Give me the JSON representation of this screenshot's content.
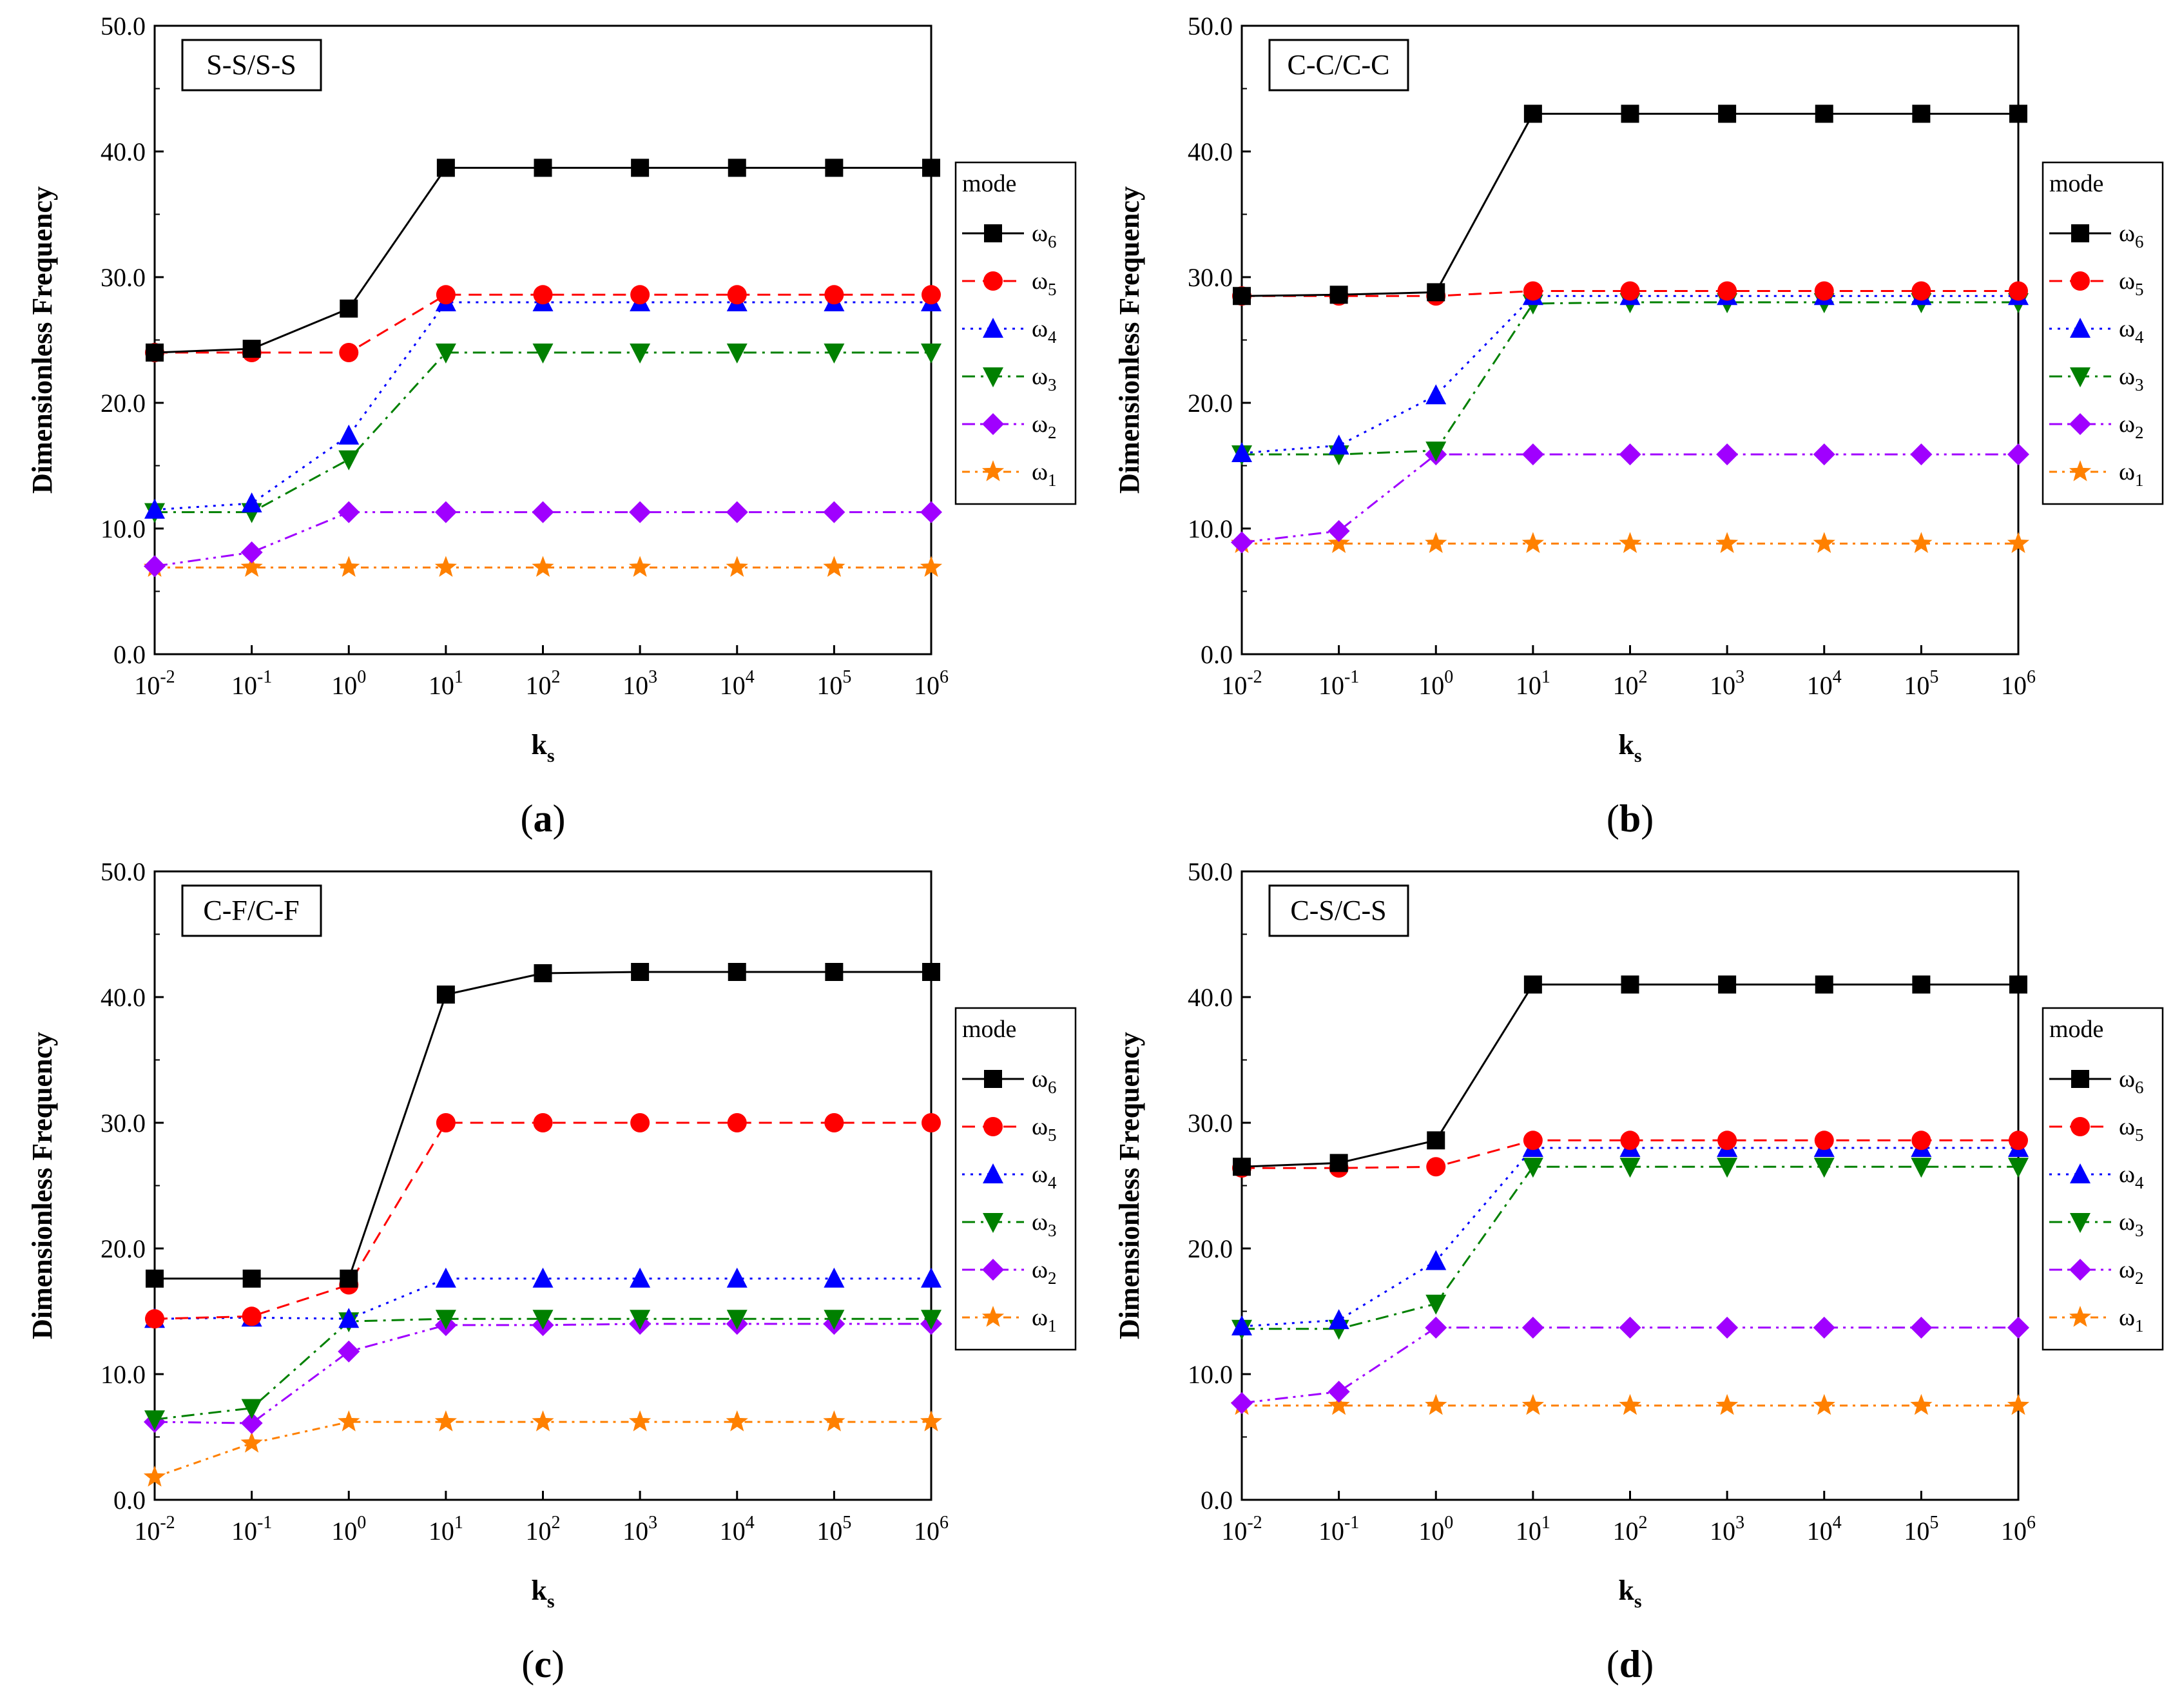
{
  "figure": {
    "ylabel": "Dimensionless Frequency",
    "xlabel_main": "k",
    "xlabel_sub": "s",
    "legend_title": "mode",
    "x_tick_base": "10",
    "x_tick_exponents": [
      "-2",
      "-1",
      "0",
      "1",
      "2",
      "3",
      "4",
      "5",
      "6"
    ],
    "y_tick_labels": [
      "0.0",
      "10.0",
      "20.0",
      "30.0",
      "40.0",
      "50.0"
    ]
  },
  "chart_data": [
    {
      "type": "line",
      "panel": "(a)",
      "panel_letter": "a",
      "condition": "S-S/S-S",
      "title": "",
      "xlabel": "ks",
      "ylabel": "Dimensionless Frequency",
      "x_scale": "log",
      "x": [
        0.01,
        0.1,
        1,
        10,
        100,
        1000,
        10000,
        100000,
        1000000
      ],
      "ylim": [
        0,
        50
      ],
      "series": [
        {
          "name": "ω6",
          "sub": "6",
          "color": "#000000",
          "marker": "square",
          "dash": "solid",
          "values": [
            24.0,
            24.3,
            27.5,
            38.7,
            38.7,
            38.7,
            38.7,
            38.7,
            38.7
          ]
        },
        {
          "name": "ω5",
          "sub": "5",
          "color": "#ff0000",
          "marker": "circle",
          "dash": "dash",
          "values": [
            24.0,
            24.0,
            24.0,
            28.6,
            28.6,
            28.6,
            28.6,
            28.6,
            28.6
          ]
        },
        {
          "name": "ω4",
          "sub": "4",
          "color": "#0000ff",
          "marker": "triangle-up",
          "dash": "dot",
          "values": [
            11.5,
            12.0,
            17.4,
            28.0,
            28.0,
            28.0,
            28.0,
            28.0,
            28.0
          ]
        },
        {
          "name": "ω3",
          "sub": "3",
          "color": "#008000",
          "marker": "triangle-down",
          "dash": "dashdot",
          "values": [
            11.3,
            11.3,
            15.5,
            24.0,
            24.0,
            24.0,
            24.0,
            24.0,
            24.0
          ]
        },
        {
          "name": "ω2",
          "sub": "2",
          "color": "#a000ff",
          "marker": "diamond",
          "dash": "dashdotdot",
          "values": [
            7.0,
            8.1,
            11.3,
            11.3,
            11.3,
            11.3,
            11.3,
            11.3,
            11.3
          ]
        },
        {
          "name": "ω1",
          "sub": "1",
          "color": "#ff8000",
          "marker": "star",
          "dash": "shortdashdot",
          "values": [
            6.9,
            6.9,
            6.9,
            6.9,
            6.9,
            6.9,
            6.9,
            6.9,
            6.9
          ]
        }
      ]
    },
    {
      "type": "line",
      "panel": "(b)",
      "panel_letter": "b",
      "condition": "C-C/C-C",
      "title": "",
      "xlabel": "ks",
      "ylabel": "Dimensionless Frequency",
      "x_scale": "log",
      "x": [
        0.01,
        0.1,
        1,
        10,
        100,
        1000,
        10000,
        100000,
        1000000
      ],
      "ylim": [
        0,
        50
      ],
      "series": [
        {
          "name": "ω6",
          "sub": "6",
          "color": "#000000",
          "marker": "square",
          "dash": "solid",
          "values": [
            28.5,
            28.6,
            28.8,
            43.0,
            43.0,
            43.0,
            43.0,
            43.0,
            43.0
          ]
        },
        {
          "name": "ω5",
          "sub": "5",
          "color": "#ff0000",
          "marker": "circle",
          "dash": "dash",
          "values": [
            28.5,
            28.5,
            28.5,
            28.9,
            28.9,
            28.9,
            28.9,
            28.9,
            28.9
          ]
        },
        {
          "name": "ω4",
          "sub": "4",
          "color": "#0000ff",
          "marker": "triangle-up",
          "dash": "dot",
          "values": [
            16.0,
            16.6,
            20.6,
            28.5,
            28.5,
            28.5,
            28.5,
            28.5,
            28.5
          ]
        },
        {
          "name": "ω3",
          "sub": "3",
          "color": "#008000",
          "marker": "triangle-down",
          "dash": "dashdot",
          "values": [
            15.9,
            15.9,
            16.2,
            27.9,
            28.0,
            28.0,
            28.0,
            28.0,
            28.0
          ]
        },
        {
          "name": "ω2",
          "sub": "2",
          "color": "#a000ff",
          "marker": "diamond",
          "dash": "dashdotdot",
          "values": [
            8.9,
            9.8,
            15.9,
            15.9,
            15.9,
            15.9,
            15.9,
            15.9,
            15.9
          ]
        },
        {
          "name": "ω1",
          "sub": "1",
          "color": "#ff8000",
          "marker": "star",
          "dash": "shortdashdot",
          "values": [
            8.8,
            8.8,
            8.8,
            8.8,
            8.8,
            8.8,
            8.8,
            8.8,
            8.8
          ]
        }
      ]
    },
    {
      "type": "line",
      "panel": "(c)",
      "panel_letter": "c",
      "condition": "C-F/C-F",
      "title": "",
      "xlabel": "ks",
      "ylabel": "Dimensionless Frequency",
      "x_scale": "log",
      "x": [
        0.01,
        0.1,
        1,
        10,
        100,
        1000,
        10000,
        100000,
        1000000
      ],
      "ylim": [
        0,
        50
      ],
      "series": [
        {
          "name": "ω6",
          "sub": "6",
          "color": "#000000",
          "marker": "square",
          "dash": "solid",
          "values": [
            17.6,
            17.6,
            17.6,
            40.2,
            41.9,
            42.0,
            42.0,
            42.0,
            42.0
          ]
        },
        {
          "name": "ω5",
          "sub": "5",
          "color": "#ff0000",
          "marker": "circle",
          "dash": "dash",
          "values": [
            14.4,
            14.6,
            17.1,
            30.0,
            30.0,
            30.0,
            30.0,
            30.0,
            30.0
          ]
        },
        {
          "name": "ω4",
          "sub": "4",
          "color": "#0000ff",
          "marker": "triangle-up",
          "dash": "dot",
          "values": [
            14.4,
            14.5,
            14.4,
            17.6,
            17.6,
            17.6,
            17.6,
            17.6,
            17.6
          ]
        },
        {
          "name": "ω3",
          "sub": "3",
          "color": "#008000",
          "marker": "triangle-down",
          "dash": "dashdot",
          "values": [
            6.4,
            7.3,
            14.2,
            14.4,
            14.4,
            14.4,
            14.4,
            14.4,
            14.4
          ]
        },
        {
          "name": "ω2",
          "sub": "2",
          "color": "#a000ff",
          "marker": "diamond",
          "dash": "dashdotdot",
          "values": [
            6.2,
            6.1,
            11.8,
            13.9,
            13.9,
            14.0,
            14.0,
            14.0,
            14.0
          ]
        },
        {
          "name": "ω1",
          "sub": "1",
          "color": "#ff8000",
          "marker": "star",
          "dash": "shortdashdot",
          "values": [
            1.8,
            4.5,
            6.2,
            6.2,
            6.2,
            6.2,
            6.2,
            6.2,
            6.2
          ]
        }
      ]
    },
    {
      "type": "line",
      "panel": "(d)",
      "panel_letter": "d",
      "condition": "C-S/C-S",
      "title": "",
      "xlabel": "ks",
      "ylabel": "Dimensionless Frequency",
      "x_scale": "log",
      "x": [
        0.01,
        0.1,
        1,
        10,
        100,
        1000,
        10000,
        100000,
        1000000
      ],
      "ylim": [
        0,
        50
      ],
      "series": [
        {
          "name": "ω6",
          "sub": "6",
          "color": "#000000",
          "marker": "square",
          "dash": "solid",
          "values": [
            26.5,
            26.8,
            28.6,
            41.0,
            41.0,
            41.0,
            41.0,
            41.0,
            41.0
          ]
        },
        {
          "name": "ω5",
          "sub": "5",
          "color": "#ff0000",
          "marker": "circle",
          "dash": "dash",
          "values": [
            26.4,
            26.4,
            26.5,
            28.6,
            28.6,
            28.6,
            28.6,
            28.6,
            28.6
          ]
        },
        {
          "name": "ω4",
          "sub": "4",
          "color": "#0000ff",
          "marker": "triangle-up",
          "dash": "dot",
          "values": [
            13.8,
            14.3,
            19.0,
            28.0,
            28.0,
            28.0,
            28.0,
            28.0,
            28.0
          ]
        },
        {
          "name": "ω3",
          "sub": "3",
          "color": "#008000",
          "marker": "triangle-down",
          "dash": "dashdot",
          "values": [
            13.6,
            13.6,
            15.6,
            26.5,
            26.5,
            26.5,
            26.5,
            26.5,
            26.5
          ]
        },
        {
          "name": "ω2",
          "sub": "2",
          "color": "#a000ff",
          "marker": "diamond",
          "dash": "dashdotdot",
          "values": [
            7.7,
            8.6,
            13.7,
            13.7,
            13.7,
            13.7,
            13.7,
            13.7,
            13.7
          ]
        },
        {
          "name": "ω1",
          "sub": "1",
          "color": "#ff8000",
          "marker": "star",
          "dash": "shortdashdot",
          "values": [
            7.5,
            7.5,
            7.5,
            7.5,
            7.5,
            7.5,
            7.5,
            7.5,
            7.5
          ]
        }
      ]
    }
  ]
}
